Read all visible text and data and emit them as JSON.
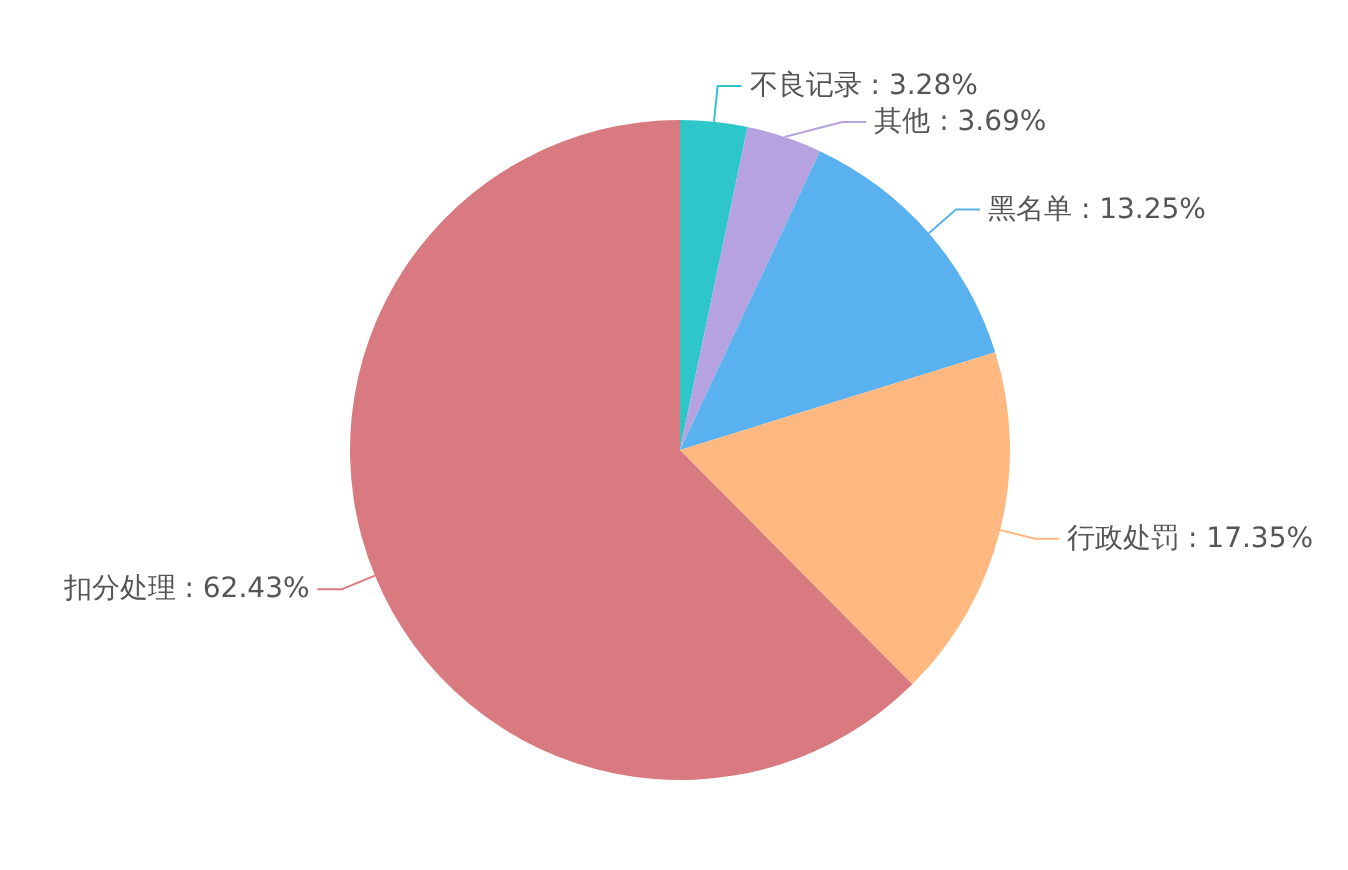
{
  "chart_data": {
    "type": "pie",
    "categories": [
      "不良记录",
      "其他",
      "黑名单",
      "行政处罚",
      "扣分处理"
    ],
    "values": [
      3.28,
      3.69,
      13.25,
      17.35,
      62.43
    ],
    "colors": [
      "#2ec7c9",
      "#b6a2de",
      "#5ab1ef",
      "#ffb980",
      "#d87a80"
    ],
    "value_labels": [
      ": 3.28%",
      ": 3.69%",
      ": 13.25%",
      ": 17.35%",
      ": 62.43%"
    ]
  }
}
